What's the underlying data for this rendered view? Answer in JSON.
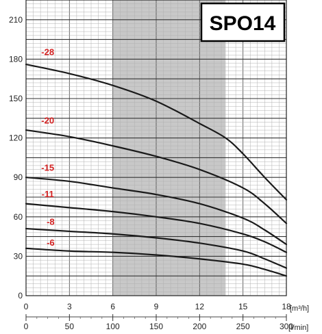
{
  "chart_data": {
    "type": "line",
    "title": "SPO14",
    "x_unit": "[m³/h]",
    "x2_unit": "[l/min]",
    "xlim": [
      0,
      18
    ],
    "ylim": [
      0,
      225
    ],
    "x_ticks": [
      0,
      3,
      6,
      9,
      12,
      15,
      18
    ],
    "x2_ticks": [
      0,
      50,
      100,
      150,
      200,
      250,
      300
    ],
    "y_ticks": [
      0,
      30,
      60,
      90,
      120,
      150,
      180,
      210
    ],
    "grid": true,
    "shaded_range": [
      6,
      13.8
    ],
    "colors": {
      "curve": "#1a1a1a",
      "label": "#d42020",
      "shade": "#c8c8c8",
      "grid_minor": "#b0b0b0",
      "grid_major": "#333333"
    },
    "series": [
      {
        "name": "-28",
        "x": [
          0,
          3,
          6,
          9,
          12,
          13.8,
          15,
          16.5,
          18
        ],
        "y": [
          176,
          169,
          160,
          148,
          131,
          120,
          108,
          90,
          73
        ]
      },
      {
        "name": "-20",
        "x": [
          0,
          3,
          6,
          9,
          12,
          15,
          16.5,
          18
        ],
        "y": [
          126,
          121,
          114,
          106,
          96,
          82,
          70,
          55
        ]
      },
      {
        "name": "-15",
        "x": [
          0,
          3,
          6,
          9,
          12,
          15,
          16.5,
          18
        ],
        "y": [
          90,
          87,
          82,
          77,
          70,
          59,
          50,
          39
        ]
      },
      {
        "name": "-11",
        "x": [
          0,
          3,
          6,
          9,
          12,
          15,
          16.5,
          18
        ],
        "y": [
          70,
          67,
          64,
          60,
          55,
          47,
          41,
          33
        ]
      },
      {
        "name": "-8",
        "x": [
          0,
          3,
          6,
          9,
          12,
          15,
          16.5,
          18
        ],
        "y": [
          51,
          49,
          47,
          44,
          40,
          34,
          28,
          21
        ]
      },
      {
        "name": "-6",
        "x": [
          0,
          3,
          6,
          9,
          12,
          15,
          16.5,
          18
        ],
        "y": [
          36,
          34,
          33,
          31,
          28,
          24,
          20,
          15
        ]
      }
    ],
    "label_positions": [
      {
        "name": "-28",
        "x": 1.5,
        "y": 183
      },
      {
        "name": "-20",
        "x": 1.5,
        "y": 131
      },
      {
        "name": "-15",
        "x": 1.5,
        "y": 95
      },
      {
        "name": "-11",
        "x": 1.5,
        "y": 75
      },
      {
        "name": "-8",
        "x": 1.7,
        "y": 54
      },
      {
        "name": "-6",
        "x": 1.7,
        "y": 38
      }
    ]
  }
}
